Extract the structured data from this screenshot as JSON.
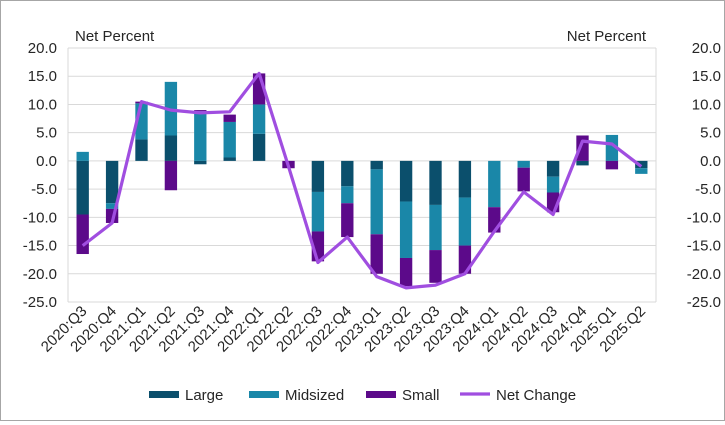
{
  "chart_data": {
    "type": "bar",
    "stacked": true,
    "left_axis_label": "Net Percent",
    "right_axis_label": "Net Percent",
    "ylim": [
      -25,
      20
    ],
    "yticks": [
      "20.0",
      "15.0",
      "10.0",
      "5.0",
      "0.0",
      "-5.0",
      "-10.0",
      "-15.0",
      "-20.0",
      "-25.0"
    ],
    "ytick_values": [
      20,
      15,
      10,
      5,
      0,
      -5,
      -10,
      -15,
      -20,
      -25
    ],
    "grid": "horizontal",
    "legend_position": "bottom",
    "categories": [
      "2020:Q3",
      "2020:Q4",
      "2021:Q1",
      "2021:Q2",
      "2021:Q3",
      "2021:Q4",
      "2022:Q1",
      "2022:Q2",
      "2022:Q3",
      "2022:Q4",
      "2023:Q1",
      "2023:Q2",
      "2023:Q3",
      "2023:Q4",
      "2024:Q1",
      "2024:Q2",
      "2024:Q3",
      "2024:Q4",
      "2025:Q1",
      "2025:Q2"
    ],
    "series": [
      {
        "name": "Large",
        "type": "bar",
        "color": "#0b4f6c",
        "values": [
          -9.5,
          -7.5,
          3.8,
          4.5,
          -0.6,
          0.6,
          4.8,
          0,
          -5.5,
          -4.5,
          -1.5,
          -7.2,
          -7.8,
          -6.5,
          0,
          0,
          -2.8,
          -0.8,
          0,
          -1.3
        ]
      },
      {
        "name": "Midsized",
        "type": "bar",
        "color": "#1a87a8",
        "values": [
          1.6,
          -1.0,
          6.4,
          9.5,
          8.8,
          6.3,
          5.2,
          0,
          -7.0,
          -3.0,
          -11.5,
          -10.0,
          -8.0,
          -8.5,
          -8.2,
          -1.2,
          -2.8,
          0,
          4.6,
          -1.0
        ]
      },
      {
        "name": "Small",
        "type": "bar",
        "color": "#5c0a8a",
        "values": [
          -7.0,
          -2.5,
          0.3,
          -5.2,
          0.2,
          1.3,
          5.5,
          -1.3,
          -5.3,
          -6.0,
          -7.0,
          -5.0,
          -5.8,
          -5.0,
          -4.5,
          -4.2,
          -3.5,
          4.5,
          -1.5,
          0
        ]
      },
      {
        "name": "Net Change",
        "type": "line",
        "color": "#a04ee0",
        "values": [
          -15.0,
          -11.0,
          10.5,
          9.0,
          8.5,
          8.7,
          15.5,
          -1.0,
          -18.0,
          -13.5,
          -20.5,
          -22.5,
          -22.0,
          -20.0,
          -12.5,
          -5.5,
          -9.5,
          3.5,
          3.0,
          -1.0
        ]
      }
    ]
  }
}
